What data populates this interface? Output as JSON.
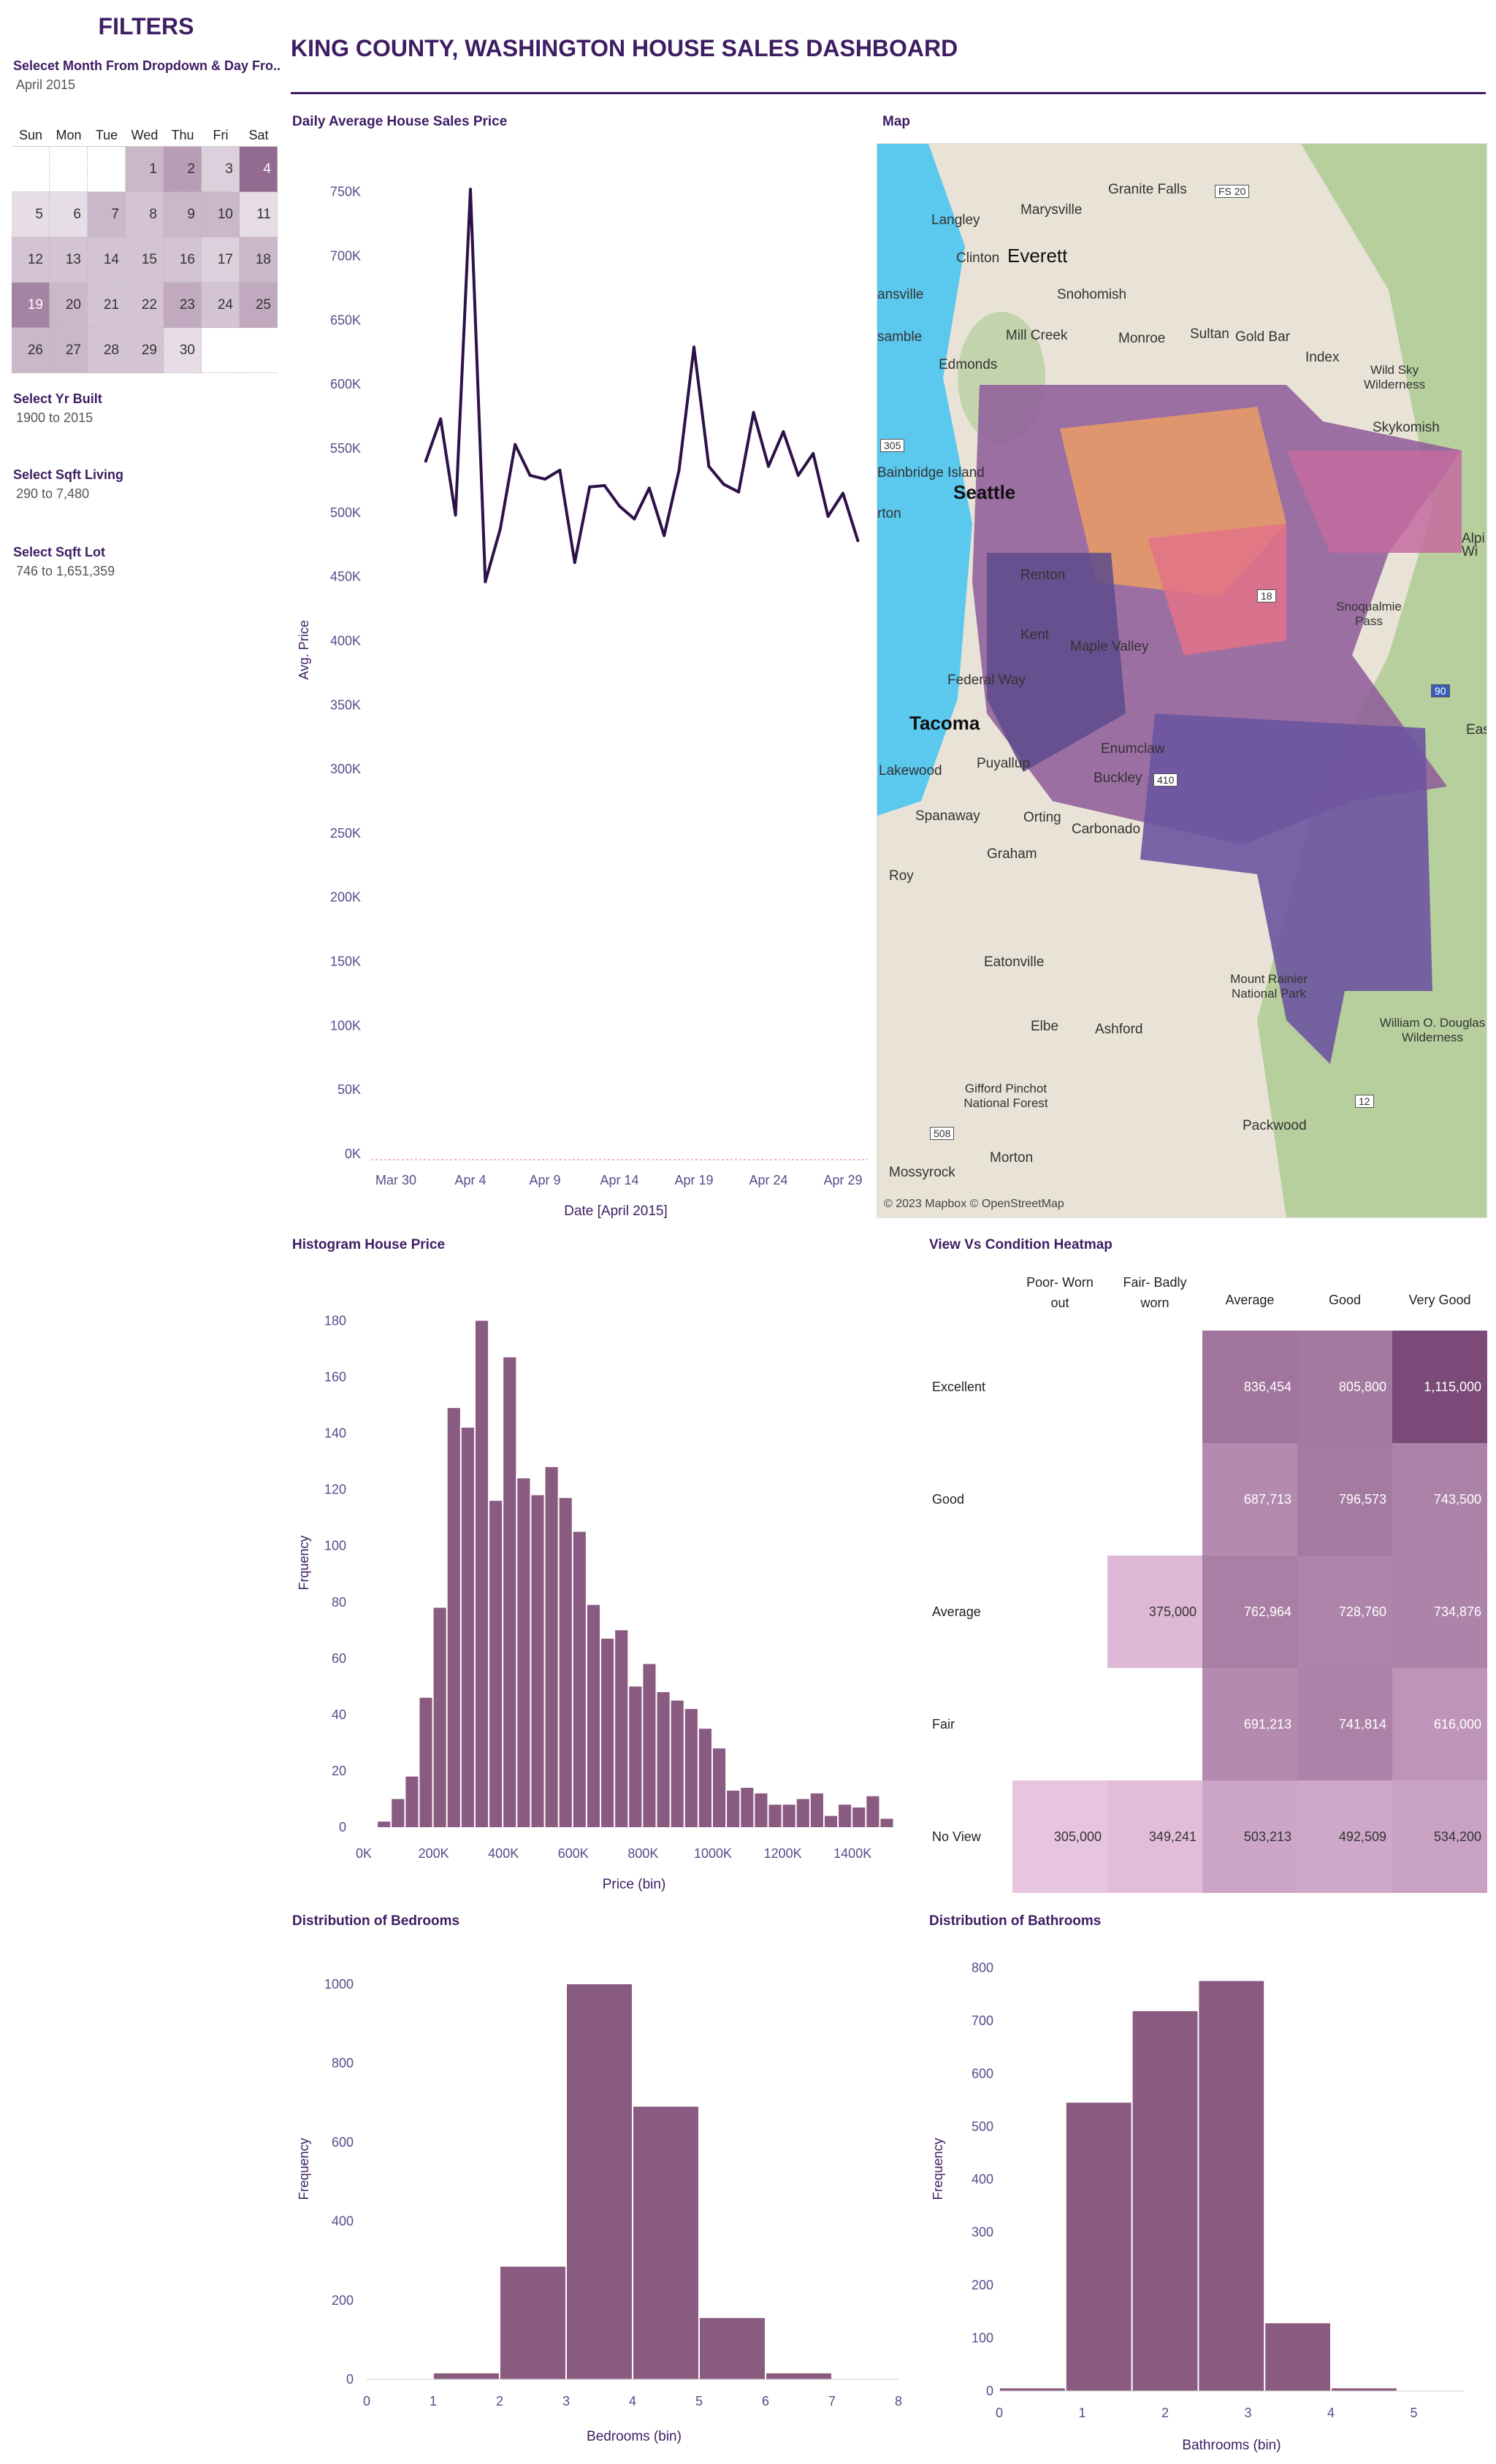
{
  "filters": {
    "title": "FILTERS",
    "month_label": "Selecet Month From Dropdown & Day Fro..",
    "month_value": "April 2015",
    "weekdays": [
      "Sun",
      "Mon",
      "Tue",
      "Wed",
      "Thu",
      "Fri",
      "Sat"
    ],
    "days": [
      {
        "d": "",
        "shade": 0
      },
      {
        "d": "",
        "shade": 0
      },
      {
        "d": "",
        "shade": 0
      },
      {
        "d": "1",
        "shade": 2
      },
      {
        "d": "2",
        "shade": 3
      },
      {
        "d": "3",
        "shade": 1
      },
      {
        "d": "4",
        "shade": 5
      },
      {
        "d": "5",
        "shade": 0.5
      },
      {
        "d": "6",
        "shade": 0.5
      },
      {
        "d": "7",
        "shade": 2
      },
      {
        "d": "8",
        "shade": 1.5
      },
      {
        "d": "9",
        "shade": 2
      },
      {
        "d": "10",
        "shade": 2
      },
      {
        "d": "11",
        "shade": 0.5
      },
      {
        "d": "12",
        "shade": 1.5
      },
      {
        "d": "13",
        "shade": 1.5
      },
      {
        "d": "14",
        "shade": 1.5
      },
      {
        "d": "15",
        "shade": 1.5
      },
      {
        "d": "16",
        "shade": 1.5
      },
      {
        "d": "17",
        "shade": 1
      },
      {
        "d": "18",
        "shade": 2
      },
      {
        "d": "19",
        "shade": 4
      },
      {
        "d": "20",
        "shade": 2
      },
      {
        "d": "21",
        "shade": 1.5
      },
      {
        "d": "22",
        "shade": 1.5
      },
      {
        "d": "23",
        "shade": 2.5
      },
      {
        "d": "24",
        "shade": 1.5
      },
      {
        "d": "25",
        "shade": 2.5
      },
      {
        "d": "26",
        "shade": 2
      },
      {
        "d": "27",
        "shade": 2
      },
      {
        "d": "28",
        "shade": 1.5
      },
      {
        "d": "29",
        "shade": 1.5
      },
      {
        "d": "30",
        "shade": 0.5
      },
      {
        "d": "",
        "shade": -1
      },
      {
        "d": "",
        "shade": -1
      }
    ],
    "yr_built_label": "Select Yr Built",
    "yr_built_value": "1900 to 2015",
    "sqft_living_label": "Select Sqft Living",
    "sqft_living_value": "290 to 7,480",
    "sqft_lot_label": "Select Sqft Lot",
    "sqft_lot_value": "746 to 1,651,359"
  },
  "header": {
    "title": "KING COUNTY, WASHINGTON HOUSE SALES DASHBOARD"
  },
  "map": {
    "title": "Map",
    "attribution": "© 2023 Mapbox © OpenStreetMap",
    "labels": [
      "Granite Falls",
      "Marysville",
      "Langley",
      "Everett",
      "Clinton",
      "Snohomish",
      "Mill Creek",
      "Monroe",
      "Sultan",
      "Gold Bar",
      "Index",
      "Edmonds",
      "Seattle",
      "Bainbridge Island",
      "Tacoma",
      "Puyallup",
      "Lakewood",
      "Spanaway",
      "Orting",
      "Graham",
      "Eatonville",
      "Elbe",
      "Ashford",
      "Packwood",
      "Morton",
      "Mossyrock",
      "Roy",
      "Enumclaw",
      "Buckley",
      "Carbonado",
      "Skykomish",
      "Kent",
      "Maple Valley",
      "Federal Way",
      "Renton",
      "Mount Rainier National Park",
      "William O. Douglas Wilderness",
      "Gifford Pinchot National Forest",
      "Wild Sky Wilderness",
      "Snoqualmie Pass",
      "FS 20",
      "305",
      "410",
      "12",
      "508",
      "90",
      "18",
      "rton",
      "ansville",
      "samble",
      "Alpi",
      "Wi",
      "Eas"
    ]
  },
  "chart_data": [
    {
      "type": "line",
      "title": "Daily Average House Sales Price",
      "xlabel": "Date [April 2015]",
      "ylabel": "Avg. Price",
      "x_ticks": [
        "Mar 30",
        "Apr 4",
        "Apr 9",
        "Apr 14",
        "Apr 19",
        "Apr 24",
        "Apr 29"
      ],
      "y_ticks": [
        "0K",
        "50K",
        "100K",
        "150K",
        "200K",
        "250K",
        "300K",
        "350K",
        "400K",
        "450K",
        "500K",
        "550K",
        "600K",
        "650K",
        "700K",
        "750K"
      ],
      "ylim": [
        0,
        780000
      ],
      "x": [
        "Apr 1",
        "Apr 2",
        "Apr 3",
        "Apr 4",
        "Apr 5",
        "Apr 6",
        "Apr 7",
        "Apr 8",
        "Apr 9",
        "Apr 10",
        "Apr 11",
        "Apr 12",
        "Apr 13",
        "Apr 14",
        "Apr 15",
        "Apr 16",
        "Apr 17",
        "Apr 18",
        "Apr 19",
        "Apr 20",
        "Apr 21",
        "Apr 22",
        "Apr 23",
        "Apr 24",
        "Apr 25",
        "Apr 26",
        "Apr 27",
        "Apr 28",
        "Apr 29",
        "Apr 30"
      ],
      "values": [
        540000,
        573000,
        498000,
        752000,
        446000,
        487000,
        553000,
        529000,
        526000,
        533000,
        461000,
        520000,
        521000,
        505000,
        495000,
        519000,
        482000,
        533000,
        629000,
        536000,
        522000,
        516000,
        578000,
        536000,
        563000,
        529000,
        546000,
        497000,
        515000,
        478000
      ]
    },
    {
      "type": "bar",
      "title": "Histogram House Price",
      "xlabel": "Price (bin)",
      "ylabel": "Frquency",
      "x_ticks": [
        "0K",
        "200K",
        "400K",
        "600K",
        "800K",
        "1000K",
        "1200K",
        "1400K"
      ],
      "y_ticks": [
        "0",
        "20",
        "40",
        "60",
        "80",
        "100",
        "120",
        "140",
        "160",
        "180"
      ],
      "bin_width": 40000,
      "bin_starts": [
        0,
        40000,
        80000,
        120000,
        160000,
        200000,
        240000,
        280000,
        320000,
        360000,
        400000,
        440000,
        480000,
        520000,
        560000,
        600000,
        640000,
        680000,
        720000,
        760000,
        800000,
        840000,
        880000,
        920000,
        960000,
        1000000,
        1040000,
        1080000,
        1120000,
        1160000,
        1200000,
        1240000,
        1280000,
        1320000,
        1360000,
        1400000,
        1440000,
        1480000
      ],
      "values": [
        0,
        2,
        10,
        18,
        46,
        78,
        149,
        142,
        180,
        116,
        167,
        124,
        118,
        128,
        117,
        105,
        79,
        67,
        70,
        50,
        58,
        48,
        45,
        42,
        35,
        28,
        13,
        14,
        12,
        8,
        8,
        10,
        12,
        4,
        8,
        7,
        11,
        3
      ]
    },
    {
      "type": "heatmap",
      "title": "View Vs Condition Heatmap",
      "columns": [
        "Poor- Worn out",
        "Fair- Badly worn",
        "Average",
        "Good",
        "Very Good"
      ],
      "rows": [
        "Excellent",
        "Good",
        "Average",
        "Fair",
        "No View"
      ],
      "values": [
        [
          null,
          null,
          836454,
          805800,
          1115000
        ],
        [
          null,
          null,
          687713,
          796573,
          743500
        ],
        [
          null,
          375000,
          762964,
          728760,
          734876
        ],
        [
          null,
          null,
          691213,
          741814,
          616000
        ],
        [
          305000,
          349241,
          503213,
          492509,
          534200
        ]
      ],
      "labels": [
        [
          "",
          "",
          "836,454",
          "805,800",
          "1,115,000"
        ],
        [
          "",
          "",
          "687,713",
          "796,573",
          "743,500"
        ],
        [
          "",
          "375,000",
          "762,964",
          "728,760",
          "734,876"
        ],
        [
          "",
          "",
          "691,213",
          "741,814",
          "616,000"
        ],
        [
          "305,000",
          "349,241",
          "503,213",
          "492,509",
          "534,200"
        ]
      ]
    },
    {
      "type": "bar",
      "title": "Distribution of Bedrooms",
      "xlabel": "Bedrooms (bin)",
      "ylabel": "Frequency",
      "x_ticks": [
        "0",
        "1",
        "2",
        "3",
        "4",
        "5",
        "6",
        "7",
        "8"
      ],
      "y_ticks": [
        "0",
        "200",
        "400",
        "600",
        "800",
        "1000"
      ],
      "bin_starts": [
        0,
        1,
        2,
        3,
        4,
        5,
        6,
        7
      ],
      "values": [
        0,
        15,
        285,
        1000,
        690,
        155,
        15,
        0
      ],
      "ylim": [
        0,
        1050
      ]
    },
    {
      "type": "bar",
      "title": "Distribution of Bathrooms",
      "xlabel": "Bathrooms (bin)",
      "ylabel": "Frequency",
      "x_ticks": [
        "0",
        "1",
        "2",
        "3",
        "4",
        "5"
      ],
      "y_ticks": [
        "0",
        "100",
        "200",
        "300",
        "400",
        "500",
        "600",
        "700",
        "800"
      ],
      "bin_starts": [
        0,
        0.8,
        1.6,
        2.4,
        3.2,
        4.0,
        4.8
      ],
      "values": [
        5,
        545,
        718,
        775,
        128,
        5,
        0
      ],
      "ylim": [
        0,
        820
      ]
    }
  ],
  "colors": {
    "title": "#3e1d63",
    "line": "#2e1148",
    "bar": "#8a5b80",
    "heat_low": "#e7c4e0",
    "heat_high": "#7b4a78"
  }
}
